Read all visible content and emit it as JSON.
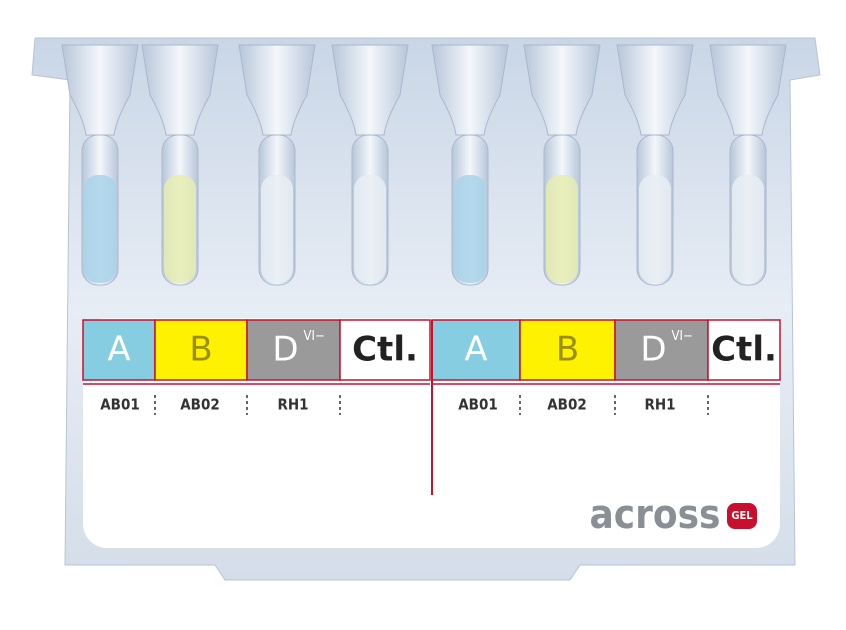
{
  "panels": [
    {
      "cells": [
        {
          "label": "A"
        },
        {
          "label": "B"
        },
        {
          "label": "D",
          "superscript": "VI−"
        },
        {
          "label": "Ctl."
        }
      ],
      "codes": [
        "AB01",
        "AB02",
        "RH1"
      ]
    },
    {
      "cells": [
        {
          "label": "A"
        },
        {
          "label": "B"
        },
        {
          "label": "D",
          "superscript": "VI−"
        },
        {
          "label": "Ctl."
        }
      ],
      "codes": [
        "AB01",
        "AB02",
        "RH1"
      ]
    }
  ],
  "brand": {
    "name": "across",
    "badge": "GEL"
  }
}
